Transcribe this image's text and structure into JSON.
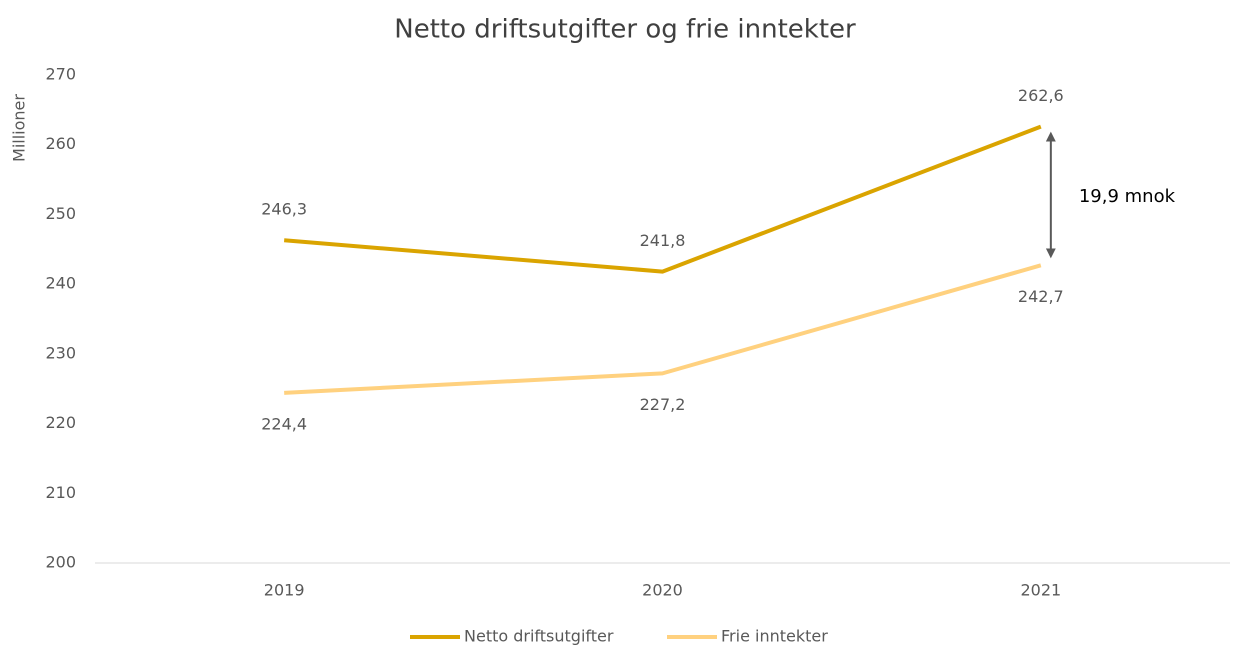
{
  "chart_data": {
    "type": "line",
    "title": "Netto driftsutgifter og frie inntekter",
    "y_label": "Millioner",
    "categories": [
      "2019",
      "2020",
      "2021"
    ],
    "series": [
      {
        "name": "Netto driftsutgifter",
        "color": "#daa400",
        "values": [
          246.3,
          241.8,
          262.6
        ],
        "value_labels": [
          "246,3",
          "241,8",
          "262,6"
        ]
      },
      {
        "name": "Frie inntekter",
        "color": "#ffd17f",
        "values": [
          224.4,
          227.2,
          242.7
        ],
        "value_labels": [
          "224,4",
          "227,2",
          "242,7"
        ]
      }
    ],
    "annotations": [
      {
        "text": "19,9 mnok"
      }
    ],
    "ylim": [
      200,
      270
    ],
    "yticks": [
      200,
      210,
      220,
      230,
      240,
      250,
      260,
      270
    ],
    "grid": false,
    "legend": "bottom"
  }
}
